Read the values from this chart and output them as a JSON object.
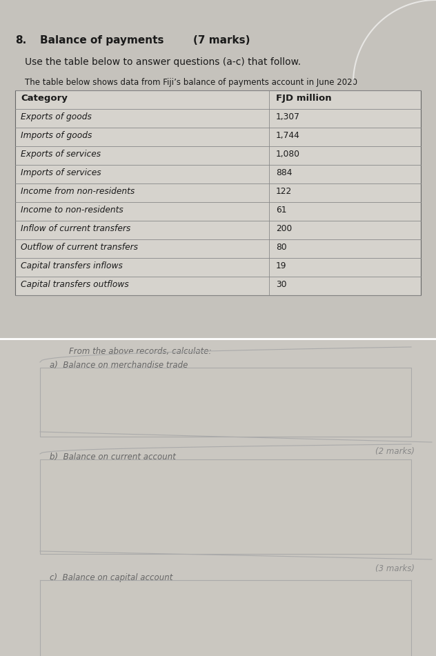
{
  "question_number": "8.",
  "question_title": "Balance of payments",
  "question_marks": "(7 marks)",
  "instruction1": "Use the table below to answer questions (a-c) that follow.",
  "instruction2": "The table below shows data from Fiji’s balance of payments account in June 2020",
  "table_headers": [
    "Category",
    "FJD million"
  ],
  "table_rows": [
    [
      "Exports of goods",
      "1,307"
    ],
    [
      "Imports of goods",
      "1,744"
    ],
    [
      "Exports of services",
      "1,080"
    ],
    [
      "Imports of services",
      "884"
    ],
    [
      "Income from non-residents",
      "122"
    ],
    [
      "Income to non-residents",
      "61"
    ],
    [
      "Inflow of current transfers",
      "200"
    ],
    [
      "Outflow of current transfers",
      "80"
    ],
    [
      "Capital transfers inflows",
      "19"
    ],
    [
      "Capital transfers outflows",
      "30"
    ]
  ],
  "from_text": "From the above records, calculate:",
  "qa_label": "a)",
  "qa_text": "Balance on merchandise trade",
  "qa_marks": "(2 marks)",
  "qb_label": "b)",
  "qb_text": "Balance on current account",
  "qb_marks": "(3 marks)",
  "qc_label": "c)",
  "qc_text": "Balance on capital account",
  "paper_color_top": "#c8c5bf",
  "paper_color_bottom": "#cbc8c2",
  "table_bg": "#d6d3cd",
  "answer_box_bg": "#cac7c0",
  "box_border_color": "#aaaaaa",
  "text_dark": "#1a1a1a",
  "text_mid": "#444444",
  "text_light": "#888888",
  "curl_color": "#b0ada8"
}
